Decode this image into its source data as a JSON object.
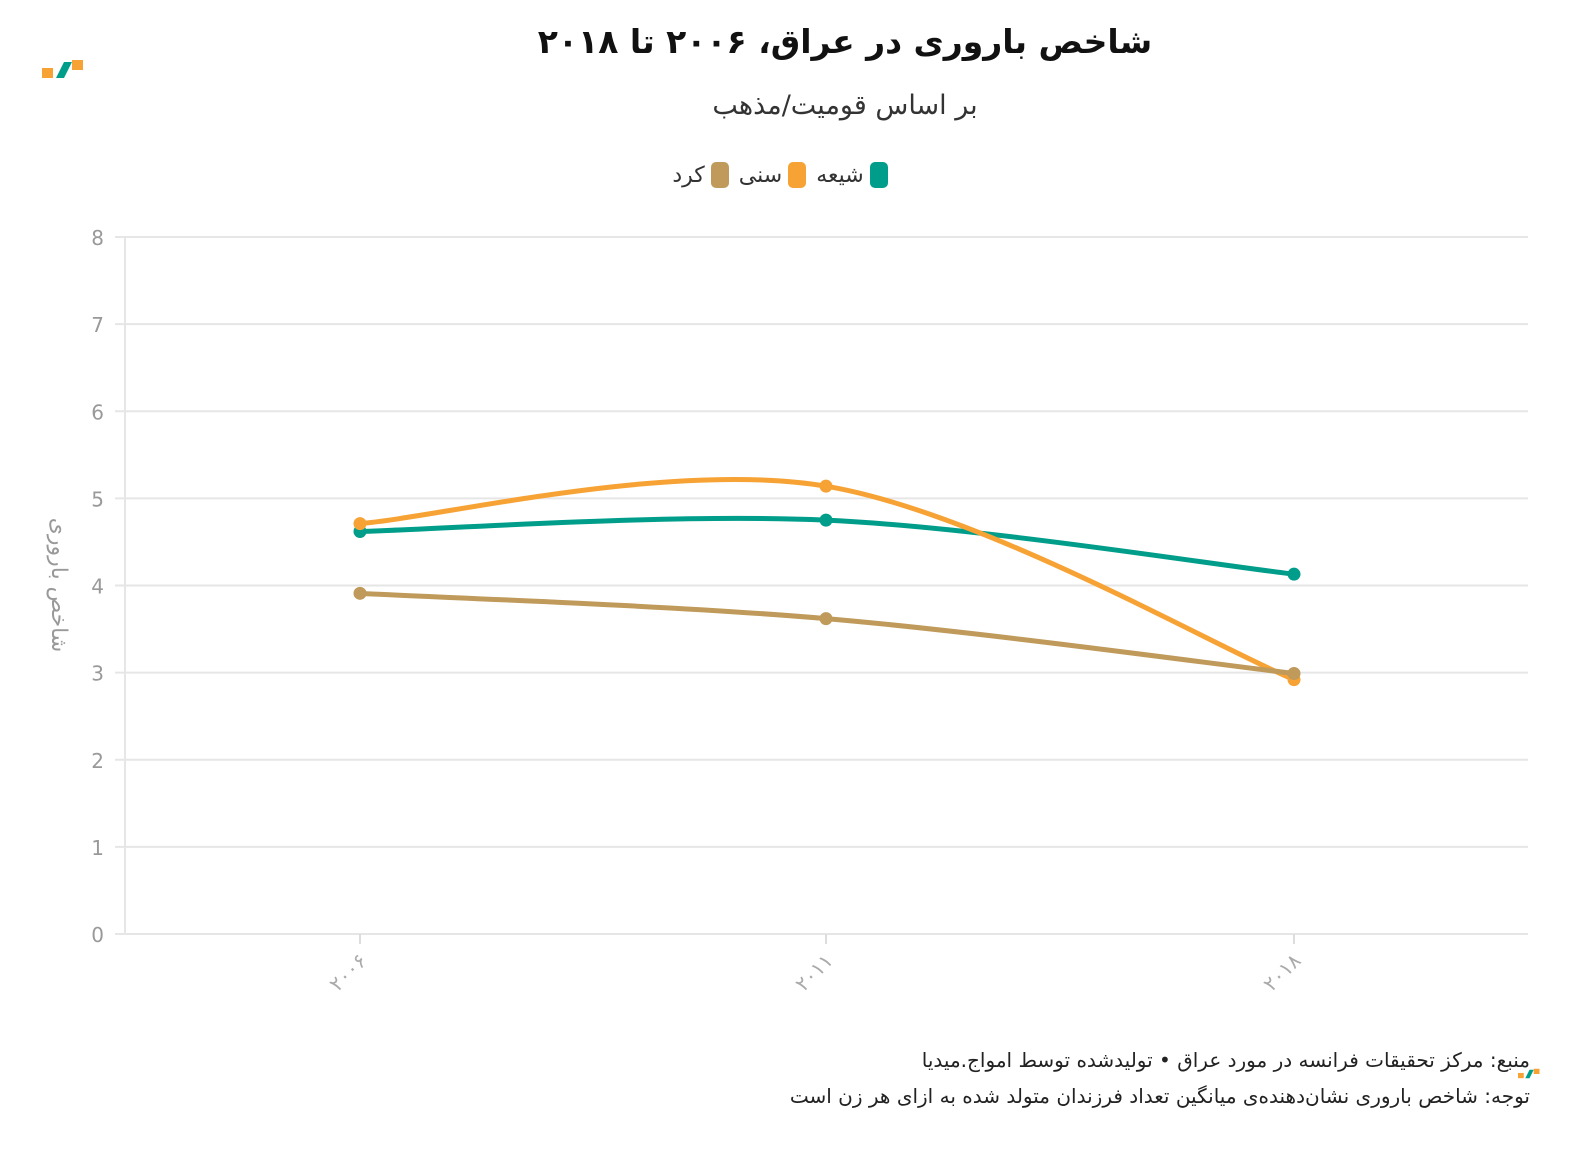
{
  "chart_data": {
    "type": "line",
    "title": "شاخص باروری در عراق، ۲۰۰۶ تا ۲۰۱۸",
    "subtitle": "بر اساس قومیت/مذهب",
    "ylabel": "شاخص باروری",
    "xlabel": "",
    "ylim": [
      0,
      8
    ],
    "y_ticks": [
      "0",
      "1",
      "2",
      "3",
      "4",
      "5",
      "6",
      "7",
      "8"
    ],
    "categories": [
      "۲۰۰۶",
      "۲۰۱۱",
      "۲۰۱۸"
    ],
    "legend_position": "top-center",
    "grid": true,
    "series": [
      {
        "name": "شیعه",
        "color": "#009e8a",
        "values": [
          4.62,
          4.75,
          4.13
        ]
      },
      {
        "name": "سنی",
        "color": "#f7a234",
        "values": [
          4.71,
          5.14,
          2.92
        ]
      },
      {
        "name": "کرد",
        "color": "#bf9a5a",
        "values": [
          3.91,
          3.62,
          2.99
        ]
      }
    ]
  },
  "footer": {
    "source": "منبع: مرکز تحقیقات فرانسه در مورد عراق • تولیدشده توسط امواج.میدیا",
    "note": "توجه: شاخص باروری نشان‌دهنده‌ی میانگین تعداد فرزندان متولد شده به ازای هر زن است"
  },
  "brand": {
    "logo_icon": "amwaj-logo-icon",
    "colors": [
      "#f7a234",
      "#009e8a"
    ]
  }
}
